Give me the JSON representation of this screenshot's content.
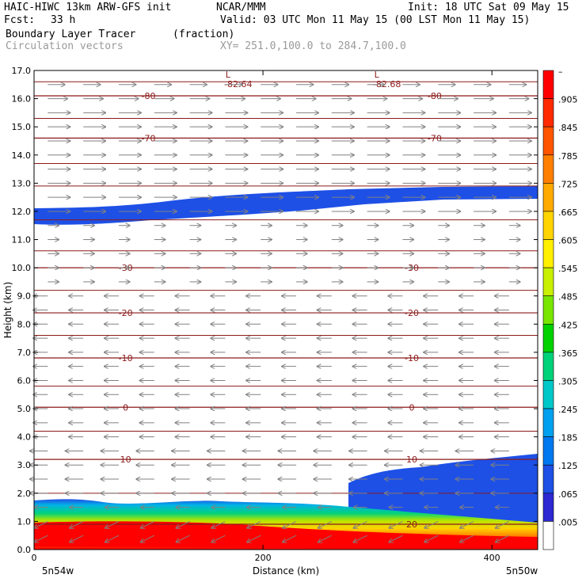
{
  "header": {
    "model": "HAIC-HIWC 13km ARW-GFS init",
    "org": "NCAR/MMM",
    "init": "Init: 18 UTC Sat 09 May 15",
    "fcst_label": "Fcst:",
    "fcst_value": "33 h",
    "valid": "Valid: 03 UTC Mon 11 May 15 (00 LST Mon 11 May 15)",
    "field": "Boundary Layer Tracer",
    "field_units": "(fraction)",
    "vectors": "Circulation vectors",
    "xy": "XY= 251.0,100.0 to 284.7,100.0"
  },
  "colors": {
    "high": "#ff0000",
    "blue": "#1e50e6",
    "contour": "#8b1a1a",
    "vector": "#808080"
  },
  "chart_data": {
    "type": "area",
    "xlabel": "Distance (km)",
    "ylabel": "Height (km)",
    "xlim": [
      0,
      440
    ],
    "ylim": [
      0,
      17
    ],
    "x_ticks": [
      "0",
      "200",
      "400"
    ],
    "y_ticks": [
      "0.0",
      "1.0",
      "2.0",
      "3.0",
      "4.0",
      "5.0",
      "6.0",
      "7.0",
      "8.0",
      "9.0",
      "10.0",
      "11.0",
      "12.0",
      "13.0",
      "14.0",
      "15.0",
      "16.0",
      "17.0"
    ],
    "x_end_labels": {
      "left": "5n54w",
      "right": "5n50w"
    },
    "colorbar": {
      "levels": [
        "–",
        ".905",
        ".845",
        ".785",
        ".725",
        ".665",
        ".605",
        ".545",
        ".485",
        ".425",
        ".365",
        ".305",
        ".245",
        ".185",
        ".125",
        ".065",
        ".005"
      ]
    },
    "temperature_contours": [
      {
        "label": "-80",
        "height_km": 16.1,
        "label_x": [
          100,
          350
        ]
      },
      {
        "label": "-70",
        "height_km": 14.6,
        "label_x": [
          100,
          350
        ]
      },
      {
        "label": "-30",
        "height_km": 10.0,
        "label_x": [
          80,
          330
        ]
      },
      {
        "label": "-20",
        "height_km": 8.4,
        "label_x": [
          80,
          330
        ]
      },
      {
        "label": "-10",
        "height_km": 6.8,
        "label_x": [
          80,
          330
        ]
      },
      {
        "label": "0",
        "height_km": 5.05,
        "label_x": [
          80,
          330
        ]
      },
      {
        "label": "10",
        "height_km": 3.2,
        "label_x": [
          80,
          330
        ]
      },
      {
        "label": "20",
        "height_km": 0.9,
        "label_x": [
          330
        ]
      }
    ],
    "minima_labels": [
      {
        "label": "-82.64",
        "x_km": 170
      },
      {
        "label": "-82.68",
        "x_km": 300
      }
    ],
    "minima_marker": "L"
  }
}
